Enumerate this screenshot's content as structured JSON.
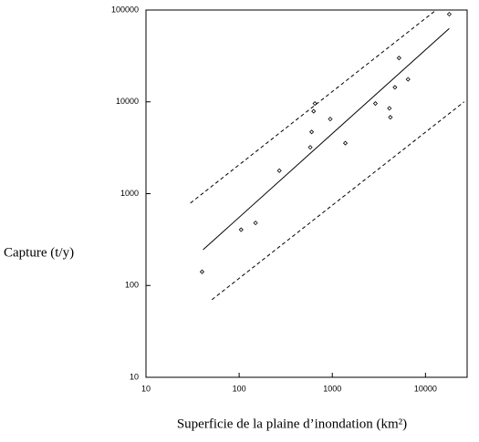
{
  "chart_data": {
    "type": "scatter",
    "x_label": "Superficie de la plaine d’inondation (km²)",
    "y_label": "Capture (t/y)",
    "xscale": "log",
    "yscale": "log",
    "xlim": [
      10,
      28000
    ],
    "ylim": [
      10,
      100000
    ],
    "xticks": [
      10,
      100,
      1000,
      10000
    ],
    "yticks": [
      10,
      100,
      1000,
      10000,
      100000
    ],
    "marker": "diamond",
    "color": "#000000",
    "series": [
      {
        "x": [
          40,
          105,
          150,
          270,
          580,
          600,
          630,
          650,
          950,
          1380,
          2900,
          4100,
          4200,
          4700,
          5200,
          6500,
          18000
        ],
        "y": [
          141,
          405,
          480,
          1780,
          3200,
          4700,
          7900,
          9600,
          6500,
          3550,
          9600,
          8500,
          6800,
          14400,
          30000,
          17600,
          90000
        ]
      }
    ],
    "lines": [
      {
        "x": [
          41,
          18000
        ],
        "y": [
          245,
          63000
        ],
        "style": "solid"
      },
      {
        "x": [
          30,
          13000
        ],
        "y": [
          790,
          100000
        ],
        "style": "dashed"
      },
      {
        "x": [
          51,
          26000
        ],
        "y": [
          70,
          10000
        ],
        "style": "dashed"
      }
    ]
  }
}
